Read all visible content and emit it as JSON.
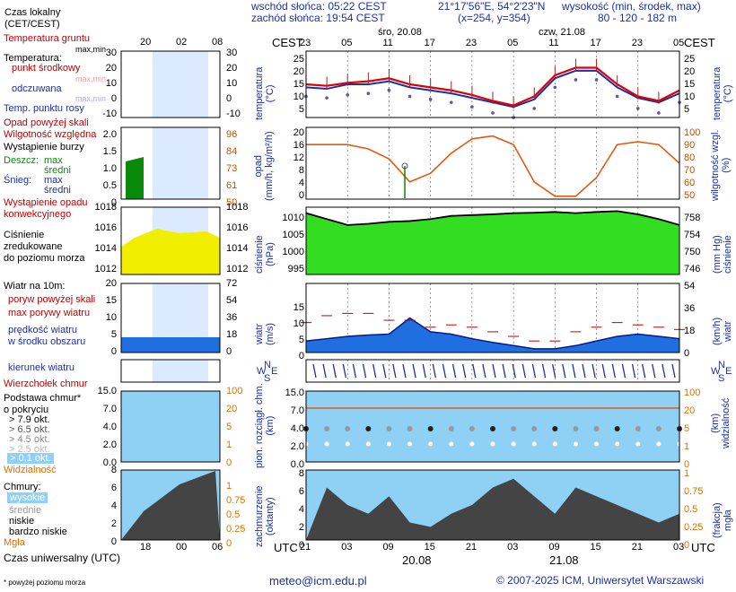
{
  "header": {
    "sunrise": "wschód słońca: 05:22 CEST",
    "sunset": "zachód słońca: 19:54 CEST",
    "coords": "21°17'56\"E, 54°2'23\"N",
    "grid": "(x=254, y=354)",
    "altitude_title": "wysokość (min, środek, max)",
    "altitude_values": "80 - 120 - 182 m"
  },
  "legend": {
    "local_time": "Czas lokalny\n(CET/CEST)",
    "ground_temp": "Temperatura gruntu",
    "max_min": "max,min",
    "temperature": "Temperatura:",
    "mid_point": "punkt środkowy",
    "max_min2": "max,min",
    "feels_like": "odczuwana",
    "max_min3": "max,min",
    "dew_point": "Temp. punktu rosy",
    "precip_above": "Opad powyżej skali",
    "humidity": "Wilgotność względna",
    "storm": "Wystąpienie burzy",
    "rain": "Deszcz:",
    "rain_max": "max",
    "rain_mid": "średni",
    "snow": "Śnieg:",
    "snow_max": "max",
    "snow_mid": "średni",
    "conv": "Wystąpienie opadu\nkonwekcyjnego",
    "pressure": "Ciśnienie\nzredukowane\ndo poziomu morza",
    "wind10": "Wiatr na 10m:",
    "gusts_above": "poryw powyżej skali",
    "max_gusts": "max porywy wiatru",
    "wind_speed": "prędkość wiatru\nw środku obszaru",
    "wind_dir": "kierunek wiatru",
    "cloud_top": "Wierzchołek chmur",
    "cloud_base": "Podstawa chmur*\no pokryciu",
    "okt79": "> 7.9 okt.",
    "okt65": "> 6.5 okt.",
    "okt45": "> 4.5 okt.",
    "okt25": "> 2.5 okt.",
    "okt01": "> 0.1 okt.",
    "visibility": "Widzialność",
    "clouds": "Chmury:",
    "high": "wysokie",
    "mid": "średnie",
    "low": "niskie",
    "very_low": "bardzo niskie",
    "fog": "Mgła",
    "utc": "Czas uniwersalny (UTC)",
    "footnote": "* powyżej poziomu morza",
    "hours_top": [
      "20",
      "02",
      "08"
    ],
    "hours_bottom": [
      "18",
      "00",
      "06"
    ]
  },
  "main": {
    "cest": "CEST",
    "utc": "UTC",
    "day1": "śro, 20.08",
    "day2": "czw, 21.08",
    "date1": "20.08",
    "date2": "21.08",
    "hours_cest": [
      "23",
      "05",
      "11",
      "17",
      "23",
      "05",
      "11",
      "17",
      "23",
      "05"
    ],
    "hours_utc": [
      "21",
      "03",
      "09",
      "15",
      "21",
      "03",
      "09",
      "15",
      "21",
      "03"
    ]
  },
  "axes": {
    "temp_left": "temperatura\n(°C)",
    "temp_right": "temperatura\n(°C)",
    "precip_left": "opad\n(mm/h, kg/m²/h)",
    "precip_right": "wilgotność wzgl.\n(%)",
    "pressure_left": "ciśnienie\n(hPa)",
    "pressure_right": "(mm Hg)\nciśnienie",
    "wind_left": "wiatr\n(m/s)",
    "wind_right": "(km/h)\nwiatr",
    "cloud_left": "pion. rozciągł. chm.\n(km)",
    "cloud_right": "(km)\nwidzialność",
    "cover_left": "zachmurzenie\n(oktanty)",
    "cover_right": "(frakcja)\nmgła",
    "temp_ticks": [
      "25",
      "20",
      "15",
      "10",
      "5"
    ],
    "precip_ticks": [
      "20",
      "16",
      "12",
      "8",
      "4",
      "0"
    ],
    "humid_ticks": [
      "100",
      "90",
      "80",
      "70",
      "60",
      "50"
    ],
    "pres_ticks": [
      "1010",
      "1005",
      "1000",
      "995"
    ],
    "mmhg_ticks": [
      "758",
      "754",
      "750",
      "746"
    ],
    "wind_ticks": [
      "15",
      "10",
      "5",
      "0"
    ],
    "kmh_ticks": [
      "54",
      "36",
      "18",
      "0"
    ],
    "cloud_ticks": [
      "15.0",
      "7.0",
      "4.0",
      "2.0",
      "0.0"
    ],
    "vis_ticks": [
      "100",
      "20",
      "5",
      "1",
      "0"
    ],
    "cover_ticks": [
      "8",
      "6",
      "4",
      "2",
      "0"
    ],
    "fog_ticks": [
      "1",
      "0.75",
      "0.5",
      "0.25",
      "0"
    ],
    "legend_temp_l": [
      "30",
      "20",
      "10",
      "0",
      "-10"
    ],
    "legend_temp_r": [
      "30",
      "20",
      "10",
      "0",
      "-10"
    ],
    "legend_prec_l": [
      "2.0",
      "1.5",
      "1.0",
      "0.5",
      "0"
    ],
    "legend_prec_r": [
      "96",
      "84",
      "73",
      "61",
      "50"
    ],
    "legend_pres_l": [
      "1018",
      "1016",
      "1014",
      "1012"
    ],
    "legend_pres_r": [
      "1018",
      "1016",
      "1014",
      "1012"
    ],
    "legend_wind_l": [
      "20",
      "15",
      "10",
      "5",
      "0"
    ],
    "legend_wind_r": [
      "72",
      "54",
      "36",
      "18",
      "0"
    ],
    "legend_cloud_l": [
      "15.0",
      "7.0",
      "4.0",
      "2.0",
      "0.0"
    ],
    "legend_cloud_r": [
      "100",
      "20",
      "5",
      "1",
      "0"
    ],
    "legend_cover_l": [
      "8",
      "6",
      "4",
      "2",
      "0"
    ],
    "legend_cover_r": [
      "1",
      "0.75",
      "0.5",
      "0.25",
      "0"
    ],
    "wind_dir_letters": [
      "N",
      "W",
      "E",
      "S"
    ]
  },
  "footer": {
    "email": "meteo@icm.edu.pl",
    "copyright": "© 2007-2025 ICM, Uniwersytet Warszawski"
  },
  "colors": {
    "temp": "#e00000",
    "feels": "#1a2fae",
    "humidity": "#e05a10",
    "pressure_fill": "#33dd22",
    "wind_fill": "#1f6fe0",
    "sky": "#8fd1f5"
  },
  "chart_data": [
    {
      "type": "line",
      "title": "temperatura",
      "ylabel": "temperatura (°C)",
      "ylim": [
        5,
        27
      ],
      "x": [
        "23",
        "02",
        "05",
        "08",
        "11",
        "14",
        "17",
        "20",
        "23",
        "02",
        "05",
        "08",
        "11",
        "14",
        "17",
        "20",
        "23",
        "02",
        "05"
      ],
      "series": [
        {
          "name": "temperatura",
          "values": [
            16,
            15.5,
            16.5,
            17,
            18,
            16,
            15,
            14,
            12.5,
            10.5,
            9,
            12,
            19,
            21.5,
            21.5,
            16,
            12,
            10.5,
            14
          ]
        },
        {
          "name": "odczuwana",
          "values": [
            15,
            14.5,
            16,
            16,
            17,
            15,
            14,
            13,
            11.5,
            10,
            8.5,
            11,
            18,
            20.5,
            20.5,
            15,
            11.5,
            10,
            13
          ]
        }
      ]
    },
    {
      "type": "line",
      "title": "opad / wilgotność",
      "ylabel": "wilgotność wzgl. (%)",
      "ylim": [
        50,
        100
      ],
      "x": [
        "23",
        "02",
        "05",
        "08",
        "11",
        "14",
        "17",
        "20",
        "23",
        "02",
        "05",
        "08",
        "11",
        "14",
        "17",
        "20",
        "23",
        "02",
        "05"
      ],
      "series": [
        {
          "name": "wilgotność",
          "values": [
            88,
            88,
            88,
            85,
            78,
            62,
            68,
            82,
            92,
            94,
            88,
            62,
            52,
            52,
            65,
            88,
            90,
            88,
            75
          ]
        }
      ]
    },
    {
      "type": "area",
      "title": "ciśnienie",
      "ylabel": "ciśnienie (hPa)",
      "ylim": [
        995,
        1012
      ],
      "x": [
        "23",
        "02",
        "05",
        "08",
        "11",
        "14",
        "17",
        "20",
        "23",
        "02",
        "05",
        "08",
        "11",
        "14",
        "17",
        "20",
        "23",
        "02",
        "05"
      ],
      "series": [
        {
          "name": "ciśnienie",
          "values": [
            1010.5,
            1009,
            1007.5,
            1007.8,
            1008.3,
            1008.5,
            1009,
            1009.8,
            1010,
            1010.2,
            1010.5,
            1010.6,
            1010.8,
            1010.5,
            1010.8,
            1011,
            1010.2,
            1009,
            1007.5
          ]
        }
      ]
    },
    {
      "type": "area",
      "title": "wiatr",
      "ylabel": "wiatr (m/s)",
      "ylim": [
        0,
        15
      ],
      "x": [
        "23",
        "02",
        "05",
        "08",
        "11",
        "14",
        "17",
        "20",
        "23",
        "02",
        "05",
        "08",
        "11",
        "14",
        "17",
        "20",
        "23",
        "02",
        "05"
      ],
      "series": [
        {
          "name": "prędkość",
          "values": [
            2.5,
            3,
            3.5,
            3.8,
            4,
            7.5,
            4.5,
            4,
            3,
            2.2,
            1.5,
            0.8,
            0.8,
            1.5,
            2.5,
            3.5,
            4,
            3.5,
            3
          ]
        },
        {
          "name": "porywy",
          "values": [
            6.5,
            8,
            8.5,
            8.5,
            7,
            7,
            5.5,
            6,
            5.5,
            4.5,
            3.5,
            2.5,
            2.5,
            4.5,
            5.5,
            6.5,
            6,
            5.5,
            5
          ]
        }
      ]
    }
  ]
}
